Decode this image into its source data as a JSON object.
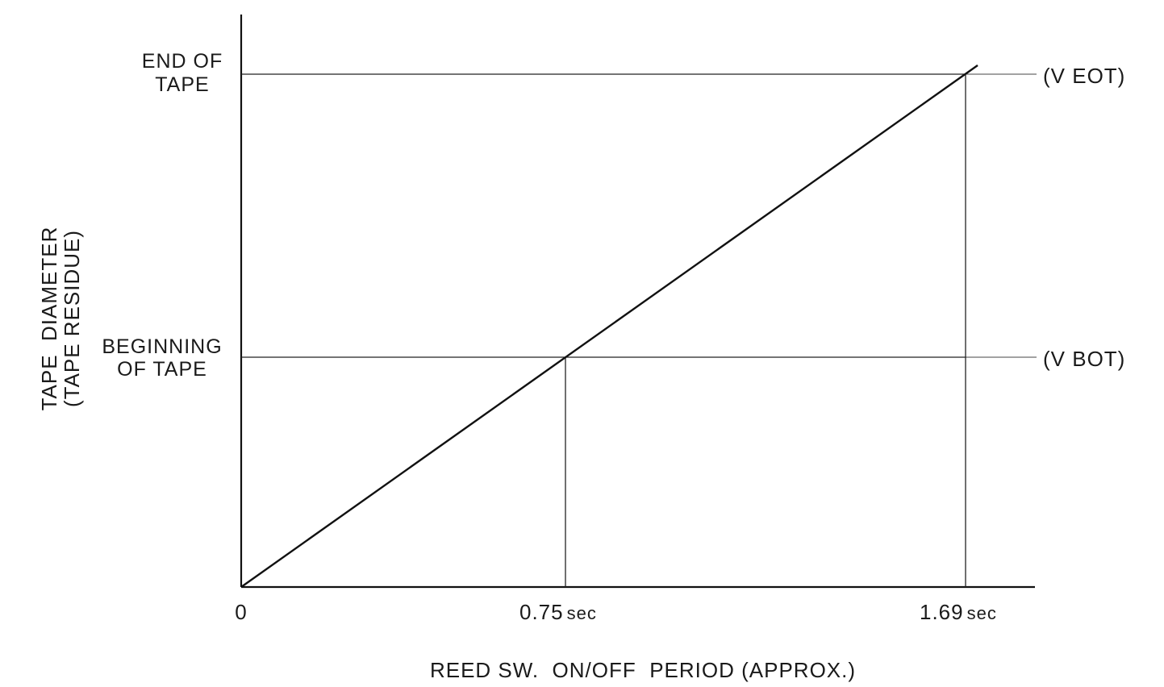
{
  "chart_data": {
    "type": "line",
    "xlabel": "REED SW.  ON/OFF  PERIOD (APPROX.)",
    "ylabel_line1": "TAPE  DIAMETER",
    "ylabel_line2": "(TAPE RESIDUE)",
    "x_ticks": [
      "0",
      "0.75",
      "1.69"
    ],
    "x_tick_unit": "sec",
    "y_categories": [
      {
        "line1": "BEGINNING",
        "line2": "OF TAPE",
        "right_label": "(V BOT)"
      },
      {
        "line1": "END OF",
        "line2": "TAPE",
        "right_label": "(V EOT)"
      }
    ],
    "series": [
      {
        "x": [
          0,
          0.75,
          1.69
        ],
        "y": [
          "origin",
          "BEGINNING OF TAPE",
          "END OF TAPE"
        ]
      }
    ],
    "xlim": [
      0,
      1.69
    ],
    "grid": false
  }
}
